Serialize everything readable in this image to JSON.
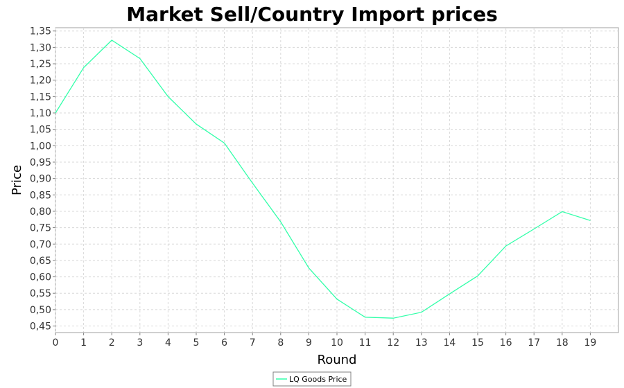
{
  "chart_data": {
    "type": "line",
    "title": "Market Sell/Country Import prices",
    "xlabel": "Round",
    "ylabel": "Price",
    "xlim": [
      0,
      20
    ],
    "ylim": [
      0.43,
      1.36
    ],
    "x_ticks": [
      "0",
      "1",
      "2",
      "3",
      "4",
      "5",
      "6",
      "7",
      "8",
      "9",
      "10",
      "11",
      "12",
      "13",
      "14",
      "15",
      "16",
      "17",
      "18",
      "19"
    ],
    "y_ticks": [
      "0,45",
      "0,50",
      "0,55",
      "0,60",
      "0,65",
      "0,70",
      "0,75",
      "0,80",
      "0,85",
      "0,90",
      "0,95",
      "1,00",
      "1,05",
      "1,10",
      "1,15",
      "1,20",
      "1,25",
      "1,30",
      "1,35"
    ],
    "grid": true,
    "legend_position": "bottom-center",
    "series": [
      {
        "name": "LQ Goods Price",
        "color": "#33ffaa",
        "x": [
          0,
          1,
          2,
          3,
          4,
          5,
          6,
          7,
          8,
          9,
          10,
          11,
          12,
          13,
          14,
          15,
          16,
          17,
          18,
          19
        ],
        "values": [
          1.1,
          1.238,
          1.322,
          1.266,
          1.15,
          1.066,
          1.008,
          0.886,
          0.768,
          0.627,
          0.532,
          0.477,
          0.474,
          0.492,
          0.548,
          0.603,
          0.694,
          0.746,
          0.799,
          0.772
        ]
      }
    ]
  }
}
